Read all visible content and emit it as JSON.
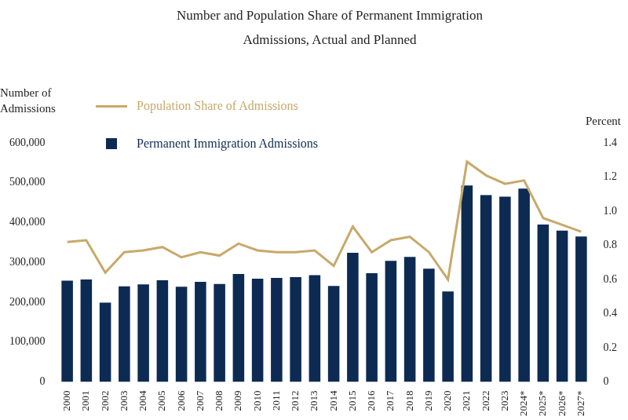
{
  "chart_data": {
    "type": "bar",
    "title": "Number and Population Share of Permanent Immigration Admissions, Actual and Planned",
    "y_label": "Number of Admissions",
    "y2_label": "Percent",
    "categories": [
      "2000",
      "2001",
      "2002",
      "2003",
      "2004",
      "2005",
      "2006",
      "2007",
      "2008",
      "2009",
      "2010",
      "2011",
      "2012",
      "2013",
      "2014",
      "2015",
      "2016",
      "2017",
      "2018",
      "2019",
      "2020",
      "2021",
      "2022",
      "2023",
      "2024*",
      "2025*",
      "2026*",
      "2027*"
    ],
    "series": [
      {
        "name": "Population Share of Admissions",
        "type": "line",
        "axis": "y2",
        "color": "#c8a96a",
        "marker": "none",
        "values": [
          0.82,
          0.83,
          0.64,
          0.76,
          0.77,
          0.79,
          0.73,
          0.76,
          0.74,
          0.81,
          0.77,
          0.76,
          0.76,
          0.77,
          0.68,
          0.91,
          0.76,
          0.83,
          0.85,
          0.76,
          0.6,
          1.29,
          1.21,
          1.16,
          1.18,
          0.96,
          0.92,
          0.88
        ]
      },
      {
        "name": "Permanent Immigration Admissions",
        "type": "bar",
        "color": "#0d2b52",
        "values": [
          254000,
          257000,
          199000,
          240000,
          245000,
          255000,
          239000,
          251000,
          246000,
          271000,
          259000,
          261000,
          263000,
          268000,
          241000,
          324000,
          273000,
          304000,
          314000,
          284000,
          227000,
          493000,
          469000,
          465000,
          485000,
          395000,
          380000,
          365000
        ]
      }
    ],
    "ylim": [
      0,
      600000
    ],
    "yticks": [
      0,
      {
        "value": 100000,
        "label": "100,000"
      },
      {
        "value": 200000,
        "label": "200,000"
      },
      {
        "value": 300000,
        "label": "300,000"
      },
      {
        "value": 400000,
        "label": "400,000"
      },
      {
        "value": 500000,
        "label": "500,000"
      },
      {
        "value": 600000,
        "label": "600,000"
      }
    ],
    "y2lim": [
      0,
      1.4
    ],
    "y2ticks": [
      0,
      0.2,
      0.4,
      0.6,
      0.8,
      {
        "value": 1,
        "label": "1.0"
      },
      1.2,
      1.4
    ],
    "grid": false,
    "legend": "upper left"
  }
}
